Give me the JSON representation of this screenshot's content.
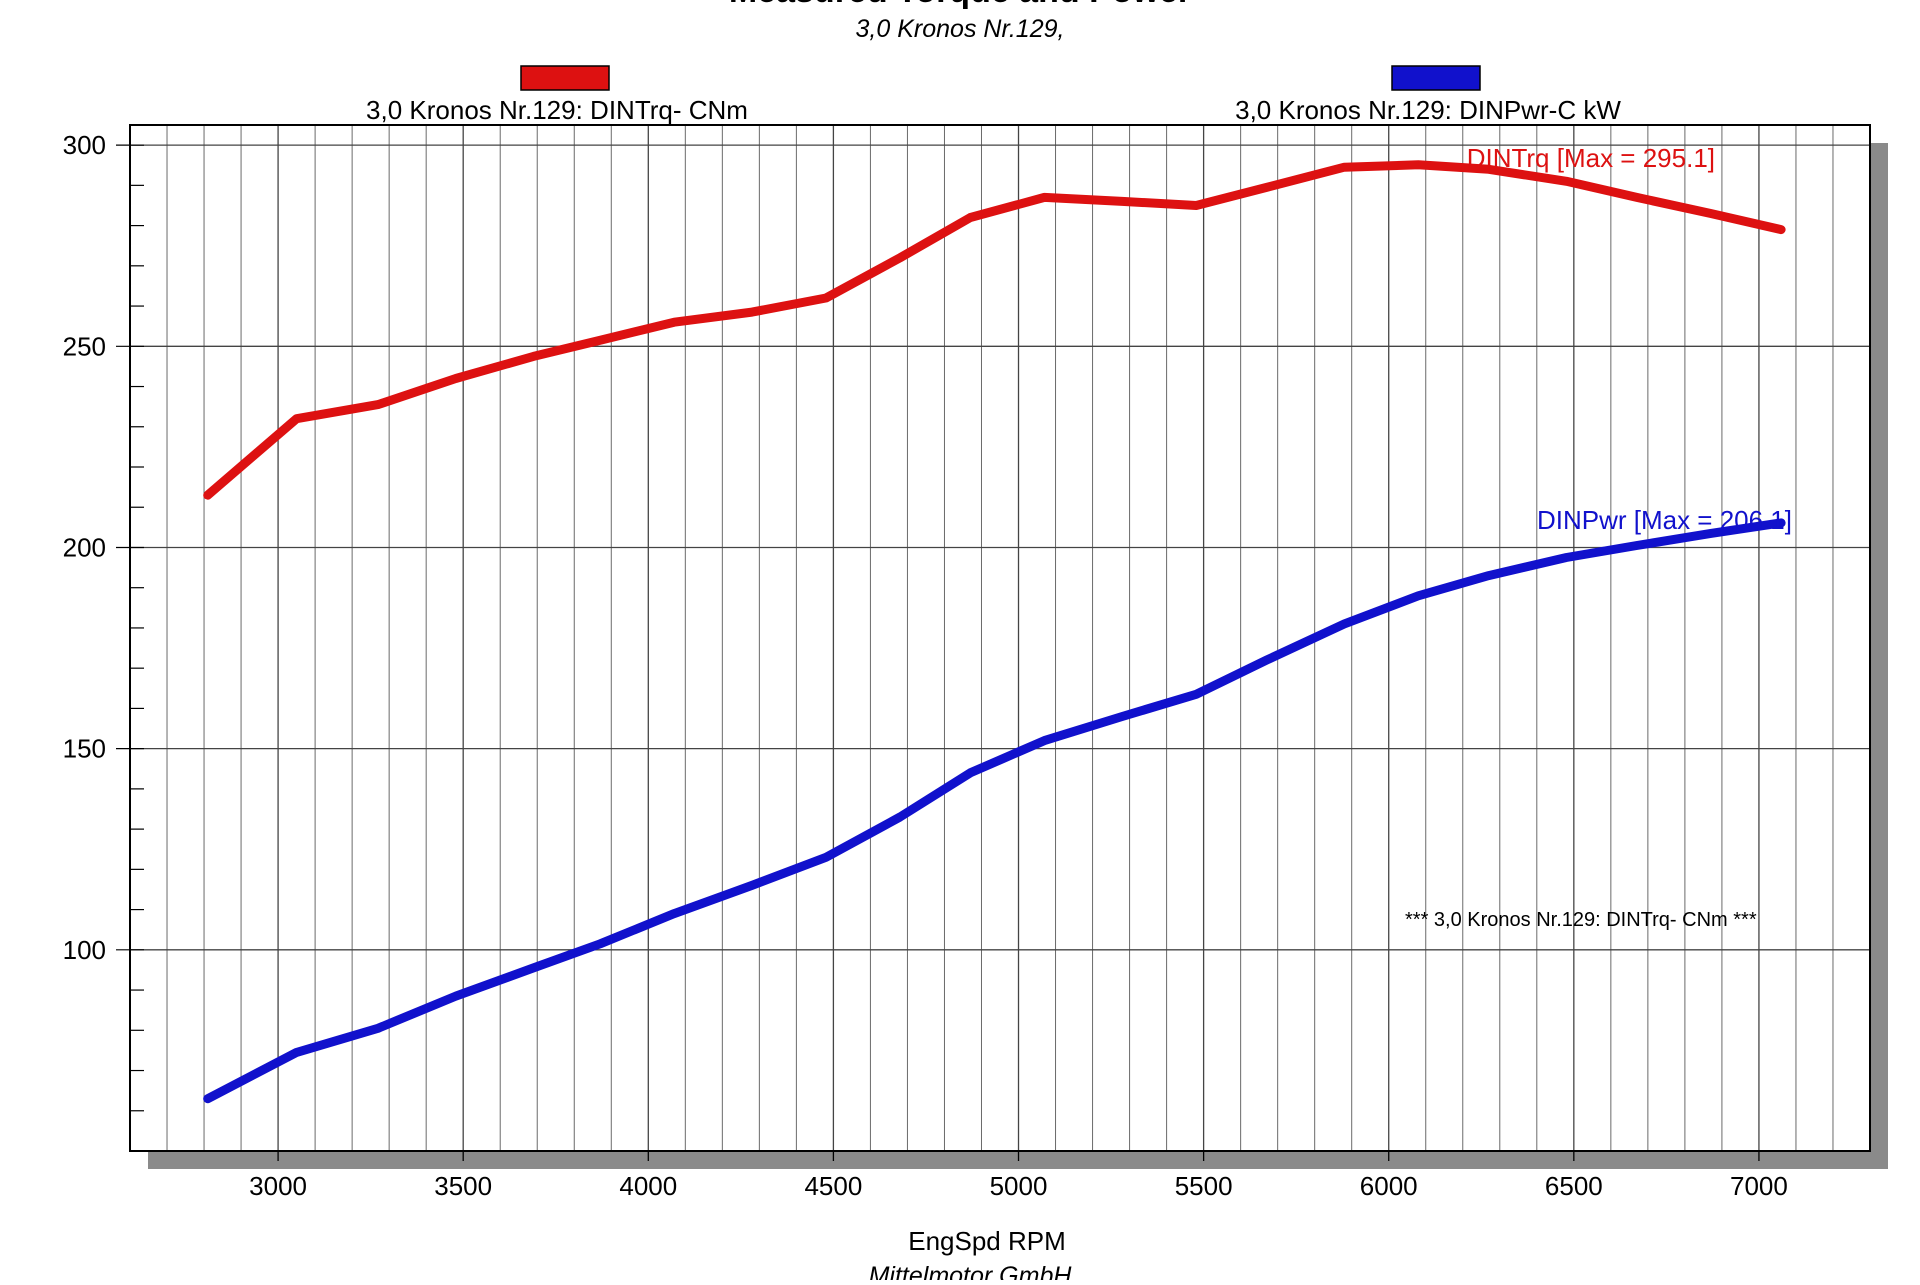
{
  "chart_data": {
    "type": "line",
    "title": "Measured Torque and Power",
    "subtitle": "3,0 Kronos Nr.129,",
    "xlabel": "EngSpd  RPM",
    "footer": "Mittelmotor GmbH",
    "xlim": [
      2600,
      7300
    ],
    "ylim": [
      50,
      305
    ],
    "x_ticks": [
      3000,
      3500,
      4000,
      4500,
      5000,
      5500,
      6000,
      6500,
      7000
    ],
    "y_ticks": [
      100,
      150,
      200,
      250,
      300
    ],
    "x_grid_step": 100,
    "y_minor_step": 10,
    "grid": true,
    "annotation": "*** 3,0 Kronos Nr.129: DINTrq- CNm    ***",
    "series": [
      {
        "name": "3,0 Kronos Nr.129: DINTrq- CNm",
        "color": "#dd1111",
        "max_label": "DINTrq [Max = 295.1]",
        "x": [
          2810,
          3050,
          3270,
          3480,
          3690,
          3870,
          4070,
          4280,
          4480,
          4680,
          4870,
          5070,
          5280,
          5480,
          5670,
          5880,
          6080,
          6270,
          6480,
          6670,
          6870,
          7060
        ],
        "values": [
          213,
          232,
          235.5,
          242,
          247.5,
          251.5,
          256,
          258.5,
          262,
          272,
          282,
          287,
          286,
          285,
          289.5,
          294.5,
          295.1,
          294,
          291,
          287,
          283,
          279
        ]
      },
      {
        "name": "3,0 Kronos Nr.129: DINPwr-C kW",
        "color": "#1111cc",
        "max_label": "DINPwr [Max = 206.1]",
        "x": [
          2810,
          3050,
          3270,
          3480,
          3690,
          3870,
          4070,
          4280,
          4480,
          4680,
          4870,
          5070,
          5280,
          5480,
          5670,
          5880,
          6080,
          6270,
          6480,
          6670,
          6870,
          7060
        ],
        "values": [
          63,
          74.5,
          80.5,
          88.5,
          95.5,
          101.5,
          109,
          116,
          123,
          133,
          144,
          152,
          158,
          163.5,
          172,
          181,
          188,
          193,
          197.5,
          200.5,
          203.5,
          206.1
        ]
      }
    ]
  }
}
